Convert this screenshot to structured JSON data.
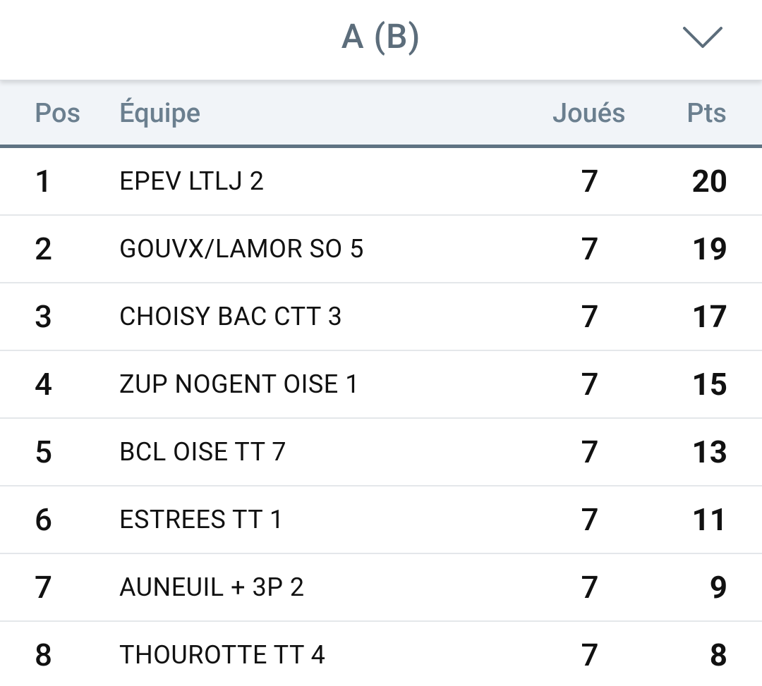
{
  "header": {
    "group_title": "A (B)",
    "dropdown_icon": "chevron-down-icon"
  },
  "table": {
    "columns": {
      "pos": "Pos",
      "team": "Équipe",
      "played": "Joués",
      "pts": "Pts"
    },
    "rows": [
      {
        "pos": "1",
        "team": "EPEV LTLJ 2",
        "played": "7",
        "pts": "20"
      },
      {
        "pos": "2",
        "team": "GOUVX/LAMOR SO 5",
        "played": "7",
        "pts": "19"
      },
      {
        "pos": "3",
        "team": "CHOISY BAC CTT 3",
        "played": "7",
        "pts": "17"
      },
      {
        "pos": "4",
        "team": "ZUP NOGENT OISE 1",
        "played": "7",
        "pts": "15"
      },
      {
        "pos": "5",
        "team": "BCL OISE TT 7",
        "played": "7",
        "pts": "13"
      },
      {
        "pos": "6",
        "team": "ESTREES TT 1",
        "played": "7",
        "pts": "11"
      },
      {
        "pos": "7",
        "team": "AUNEUIL + 3P 2",
        "played": "7",
        "pts": "9"
      },
      {
        "pos": "8",
        "team": "THOUROTTE TT 4",
        "played": "7",
        "pts": "8"
      }
    ]
  },
  "colors": {
    "title": "#5c6d7b",
    "header_bg": "#f1f4f8",
    "header_text": "#6b7f8f",
    "header_rule": "#5f7383",
    "row_text": "#111111",
    "row_divider": "#e4e7ea"
  }
}
